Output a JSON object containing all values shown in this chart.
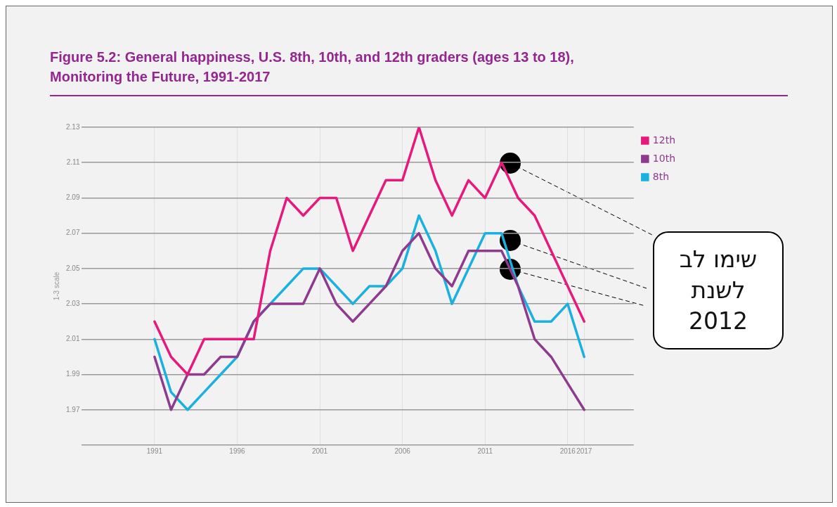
{
  "chart_data": {
    "type": "line",
    "title": "Figure 5.2: General happiness, U.S. 8th, 10th, and 12th graders (ages 13 to 18), Monitoring the Future, 1991-2017",
    "ylabel": "1-3 scale",
    "x": [
      1991,
      1992,
      1993,
      1994,
      1995,
      1996,
      1997,
      1998,
      1999,
      2000,
      2001,
      2002,
      2003,
      2004,
      2005,
      2006,
      2007,
      2008,
      2009,
      2010,
      2011,
      2012,
      2013,
      2014,
      2015,
      2016,
      2017
    ],
    "series": [
      {
        "name": "12th",
        "color": "#e6197d",
        "values": [
          2.02,
          2.0,
          1.99,
          2.01,
          2.01,
          2.01,
          2.01,
          2.06,
          2.09,
          2.08,
          2.09,
          2.09,
          2.06,
          2.08,
          2.1,
          2.1,
          2.13,
          2.1,
          2.08,
          2.1,
          2.09,
          2.11,
          2.09,
          2.08,
          2.06,
          2.04,
          2.02
        ]
      },
      {
        "name": "10th",
        "color": "#8e3a8e",
        "values": [
          2.0,
          1.97,
          1.99,
          1.99,
          2.0,
          2.0,
          2.02,
          2.03,
          2.03,
          2.03,
          2.05,
          2.03,
          2.02,
          2.03,
          2.04,
          2.06,
          2.07,
          2.05,
          2.04,
          2.06,
          2.06,
          2.06,
          2.04,
          2.01,
          2.0,
          1.985,
          1.97
        ]
      },
      {
        "name": "8th",
        "color": "#1ab0e0",
        "values": [
          2.01,
          1.98,
          1.97,
          1.98,
          1.99,
          2.0,
          2.02,
          2.03,
          2.04,
          2.05,
          2.05,
          2.04,
          2.03,
          2.04,
          2.04,
          2.05,
          2.08,
          2.06,
          2.03,
          2.05,
          2.07,
          2.07,
          2.04,
          2.02,
          2.02,
          2.03,
          2.0
        ]
      }
    ],
    "xlim": [
      1986.6,
      2020
    ],
    "xticks": [
      1991,
      1996,
      2001,
      2006,
      2011,
      2016,
      2017
    ],
    "ylim": [
      1.95,
      2.13
    ],
    "yticks": [
      {
        "value": 1.95,
        "label": null
      },
      1.97,
      1.99,
      2.01,
      2.03,
      2.05,
      2.07,
      2.09,
      2.11,
      2.13
    ],
    "grid": true,
    "legend": "top right",
    "marker": "none",
    "line_style": "solid",
    "annotations": [
      "שימו לב לשנת 2012"
    ]
  }
}
